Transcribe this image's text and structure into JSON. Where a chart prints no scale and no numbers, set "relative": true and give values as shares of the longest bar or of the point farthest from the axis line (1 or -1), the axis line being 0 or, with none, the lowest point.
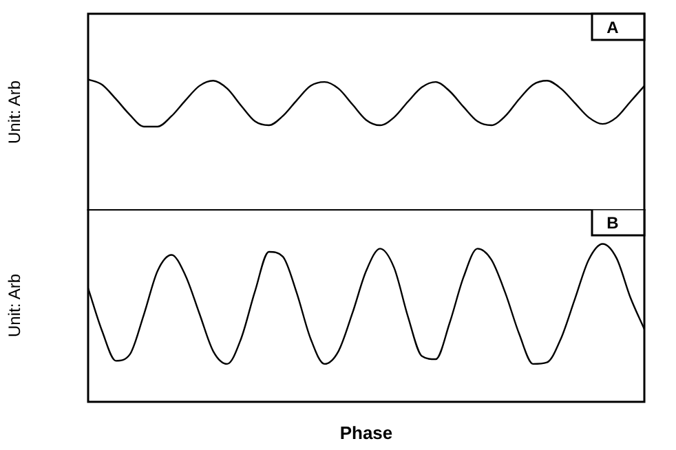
{
  "chart_data": [
    {
      "type": "line",
      "ylabel": "Unit: Arb",
      "annotations": [
        "A"
      ],
      "relative": true,
      "legend": false,
      "grid": false,
      "marker": "none",
      "line_style": "solid",
      "categories": [
        null,
        null,
        null,
        null,
        null,
        null,
        null,
        null,
        null,
        null,
        null,
        null,
        null,
        null,
        null,
        null,
        null,
        null,
        null,
        null,
        null,
        null,
        null,
        null,
        null,
        null,
        null,
        null,
        null,
        null,
        null,
        null,
        null,
        null,
        null,
        null,
        null,
        null,
        null,
        null,
        null
      ],
      "series": [
        {
          "color": "#000000",
          "values": [
            1.0,
            0.96,
            0.85,
            0.73,
            0.64,
            0.64,
            0.72,
            0.84,
            0.95,
            0.99,
            0.93,
            0.8,
            0.68,
            0.65,
            0.72,
            0.84,
            0.95,
            0.98,
            0.93,
            0.81,
            0.69,
            0.65,
            0.71,
            0.83,
            0.94,
            0.98,
            0.91,
            0.79,
            0.68,
            0.65,
            0.72,
            0.85,
            0.96,
            0.99,
            0.93,
            0.82,
            0.71,
            0.66,
            0.71,
            0.83,
            0.95
          ]
        }
      ]
    },
    {
      "type": "line",
      "ylabel": "Unit: Arb",
      "xlabel": "Phase",
      "annotations": [
        "B"
      ],
      "relative": true,
      "legend": false,
      "grid": false,
      "marker": "none",
      "line_style": "solid",
      "categories": [
        null,
        null,
        null,
        null,
        null,
        null,
        null,
        null,
        null,
        null,
        null,
        null,
        null,
        null,
        null,
        null,
        null,
        null,
        null,
        null,
        null,
        null,
        null,
        null,
        null,
        null,
        null,
        null,
        null,
        null,
        null,
        null,
        null,
        null,
        null,
        null,
        null,
        null,
        null,
        null,
        null
      ],
      "series": [
        {
          "color": "#000000",
          "values": [
            0.72,
            0.45,
            0.26,
            0.3,
            0.55,
            0.83,
            0.93,
            0.8,
            0.56,
            0.32,
            0.24,
            0.4,
            0.7,
            0.95,
            0.92,
            0.69,
            0.4,
            0.24,
            0.32,
            0.56,
            0.83,
            0.97,
            0.85,
            0.54,
            0.29,
            0.27,
            0.5,
            0.79,
            0.97,
            0.9,
            0.69,
            0.43,
            0.24,
            0.25,
            0.4,
            0.65,
            0.9,
            1.0,
            0.91,
            0.66,
            0.46
          ]
        }
      ]
    }
  ]
}
